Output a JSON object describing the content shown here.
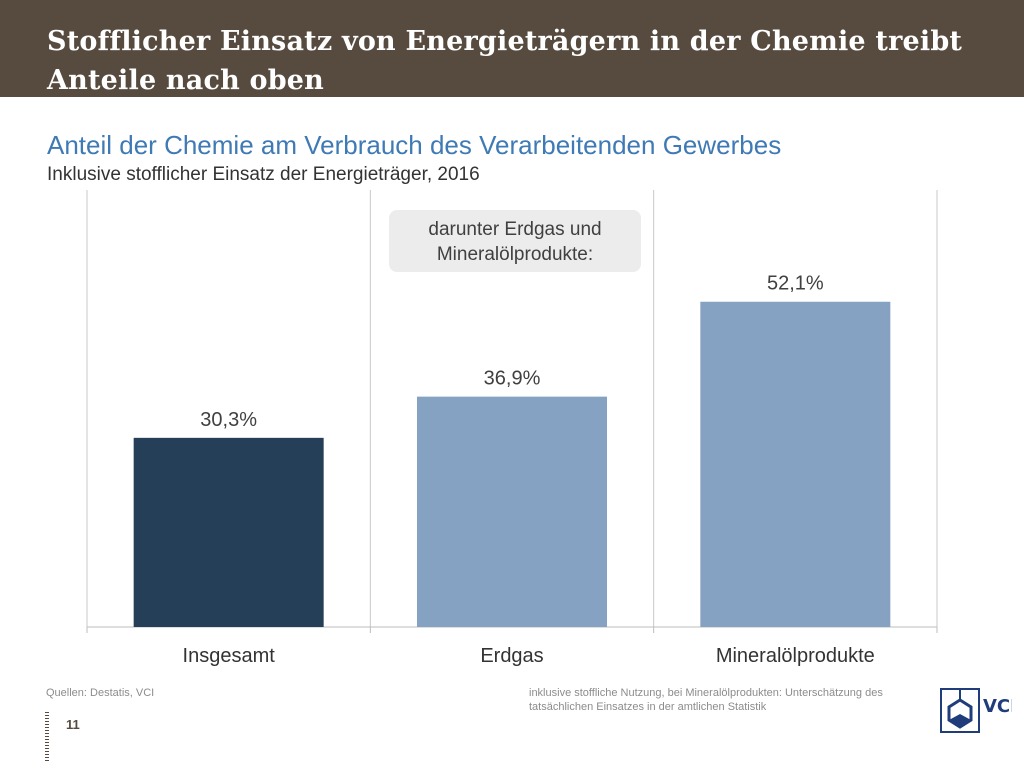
{
  "header": {
    "title": "Stofflicher Einsatz von Energieträgern in der Chemie treibt Anteile nach oben"
  },
  "chart_data": {
    "type": "bar",
    "title": "Anteil der Chemie am Verbrauch des Verarbeitenden Gewerbes",
    "subtitle": "Inklusive stofflicher Einsatz der Energieträger, 2016",
    "categories": [
      "Insgesamt",
      "Erdgas",
      "Mineralölprodukte"
    ],
    "values": [
      30.3,
      36.9,
      52.1
    ],
    "value_labels": [
      "30,3%",
      "36,9%",
      "52,1%"
    ],
    "bar_colors": [
      "#263f59",
      "#86a2c2",
      "#86a2c2"
    ],
    "ylim": [
      0,
      70
    ],
    "xlabel": "",
    "ylabel": "",
    "grid": false,
    "annotation": "darunter Erdgas und Mineralölprodukte:"
  },
  "footer": {
    "source": "Quellen: Destatis, VCI",
    "note": "inklusive stoffliche Nutzung, bei Mineralölprodukten: Unterschätzung des tatsächlichen Einsatzes in der amtlichen Statistik",
    "page_number": "11"
  },
  "logo": {
    "text": "VCI",
    "color": "#1f3d7a"
  }
}
